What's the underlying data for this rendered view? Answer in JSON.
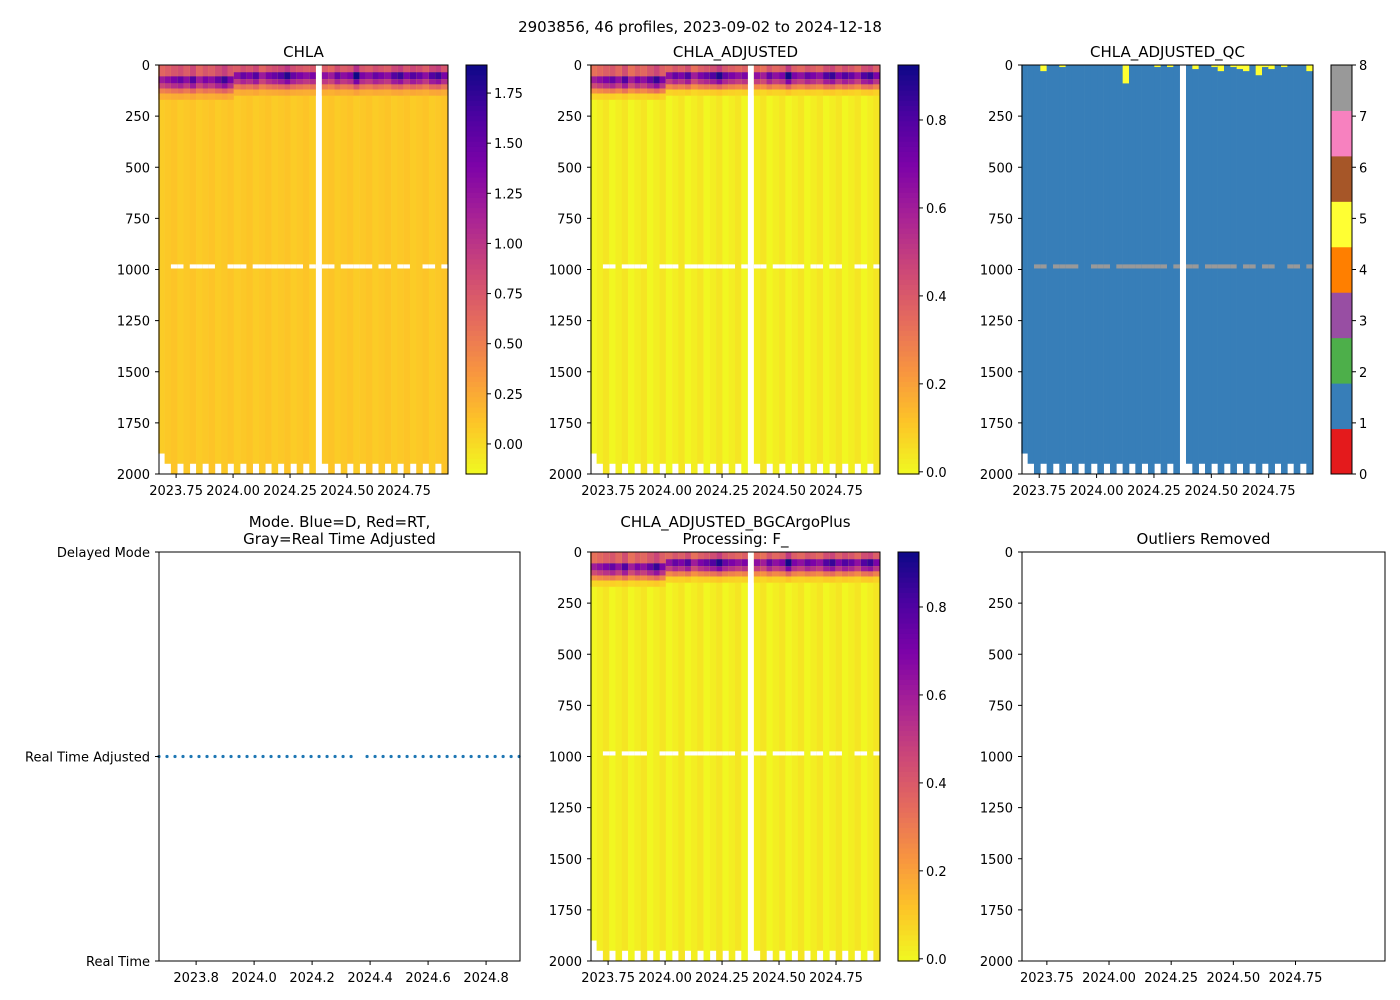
{
  "suptitle": "2903856, 46 profiles, 2023-09-02 to 2024-12-18",
  "chart_data": [
    {
      "type": "heatmap",
      "title": "CHLA",
      "variable": "CHLA",
      "xlim": [
        2023.675,
        2024.943
      ],
      "ylim": [
        2000,
        0
      ],
      "xticks": [
        "2023.75",
        "2024.00",
        "2024.25",
        "2024.50",
        "2024.75"
      ],
      "xtick_values": [
        2023.75,
        2024.0,
        2024.25,
        2024.5,
        2024.75
      ],
      "yticks": [
        0,
        250,
        500,
        750,
        1000,
        1250,
        1500,
        1750,
        2000
      ],
      "colorbar": {
        "cmap": "plasma_r",
        "range": [
          -0.15,
          1.89
        ],
        "ticks": [
          0.0,
          0.25,
          0.5,
          0.75,
          1.0,
          1.25,
          1.5,
          1.75
        ],
        "tick_labels": [
          "0.00",
          "0.25",
          "0.50",
          "0.75",
          "1.00",
          "1.25",
          "1.50",
          "1.75"
        ]
      },
      "deep_value": 0.07,
      "surface_max": [
        1.2,
        1.3,
        1.4,
        1.5,
        1.3,
        1.6,
        1.2,
        1.4,
        1.3,
        1.5,
        1.7,
        1.4,
        1.3,
        1.5,
        1.4,
        1.6,
        1.2,
        1.4,
        1.5,
        1.6,
        1.8,
        1.5,
        1.4,
        1.3,
        1.4,
        1.3,
        1.2,
        1.5,
        1.3,
        1.4,
        1.9,
        1.4,
        1.3,
        1.5,
        1.4,
        1.3,
        1.6,
        1.7,
        1.4,
        1.6,
        1.5,
        1.3,
        1.6,
        1.7,
        1.4,
        1.6
      ]
    },
    {
      "type": "heatmap",
      "title": "CHLA_ADJUSTED",
      "variable": "CHLA_ADJUSTED",
      "xlim": [
        2023.675,
        2024.943
      ],
      "ylim": [
        2000,
        0
      ],
      "xticks": [
        "2023.75",
        "2024.00",
        "2024.25",
        "2024.50",
        "2024.75"
      ],
      "xtick_values": [
        2023.75,
        2024.0,
        2024.25,
        2024.5,
        2024.75
      ],
      "yticks": [
        0,
        250,
        500,
        750,
        1000,
        1250,
        1500,
        1750,
        2000
      ],
      "colorbar": {
        "cmap": "plasma_r",
        "range": [
          -0.005,
          0.925
        ],
        "ticks": [
          0.0,
          0.2,
          0.4,
          0.6,
          0.8
        ],
        "tick_labels": [
          "0.0",
          "0.2",
          "0.4",
          "0.6",
          "0.8"
        ]
      },
      "deep_value": 0.0,
      "surface_max": [
        0.6,
        0.65,
        0.7,
        0.75,
        0.65,
        0.8,
        0.6,
        0.7,
        0.65,
        0.75,
        0.85,
        0.7,
        0.65,
        0.75,
        0.7,
        0.8,
        0.6,
        0.7,
        0.75,
        0.8,
        0.9,
        0.75,
        0.7,
        0.65,
        0.7,
        0.65,
        0.6,
        0.75,
        0.65,
        0.7,
        0.92,
        0.7,
        0.65,
        0.75,
        0.7,
        0.65,
        0.8,
        0.85,
        0.7,
        0.8,
        0.75,
        0.65,
        0.8,
        0.85,
        0.7,
        0.8
      ]
    },
    {
      "type": "heatmap",
      "title": "CHLA_ADJUSTED_QC",
      "variable": "CHLA_ADJUSTED_QC",
      "xlim": [
        2023.675,
        2024.943
      ],
      "ylim": [
        2000,
        0
      ],
      "xticks": [
        "2023.75",
        "2024.00",
        "2024.25",
        "2024.50",
        "2024.75"
      ],
      "xtick_values": [
        2023.75,
        2024.0,
        2024.25,
        2024.5,
        2024.75
      ],
      "yticks": [
        0,
        250,
        500,
        750,
        1000,
        1250,
        1500,
        1750,
        2000
      ],
      "colorbar": {
        "cmap": "qc",
        "range": [
          0,
          8
        ],
        "ticks": [
          0,
          1,
          2,
          3,
          4,
          5,
          6,
          7,
          8
        ],
        "tick_labels": [
          "0",
          "1",
          "2",
          "3",
          "4",
          "5",
          "6",
          "7",
          "8"
        ],
        "colors": [
          "#e41a1c",
          "#377eb8",
          "#4daf4a",
          "#984ea3",
          "#ff7f00",
          "#ffff33",
          "#a65628",
          "#f781bf",
          "#999999"
        ]
      },
      "surface_flag5_depth": [
        0,
        0,
        0,
        30,
        0,
        0,
        10,
        0,
        0,
        0,
        0,
        0,
        0,
        0,
        0,
        0,
        90,
        0,
        0,
        0,
        0,
        10,
        0,
        10,
        0,
        0,
        20,
        0,
        0,
        10,
        30,
        0,
        10,
        20,
        30,
        0,
        50,
        10,
        20,
        0,
        10,
        0,
        0,
        0,
        30,
        10
      ]
    },
    {
      "type": "scatter",
      "title": "Mode. Blue=D, Red=RT,\nGray=Real Time Adjusted",
      "xlim": [
        2023.672,
        2024.917
      ],
      "xticks": [
        "2023.8",
        "2024.0",
        "2024.2",
        "2024.4",
        "2024.6",
        "2024.8"
      ],
      "xtick_values": [
        2023.8,
        2024.0,
        2024.2,
        2024.4,
        2024.6,
        2024.8
      ],
      "yticks": [
        "Real Time",
        "Real Time Adjusted",
        "Delayed Mode"
      ],
      "ylim": [
        0,
        2
      ],
      "series": [
        {
          "name": "Real Time Adjusted",
          "y": 1,
          "color": "#1f77b4"
        }
      ]
    },
    {
      "type": "heatmap",
      "title": "CHLA_ADJUSTED_BGCArgoPlus\nProcessing: F_",
      "variable": "CHLA_ADJUSTED",
      "xlim": [
        2023.675,
        2024.943
      ],
      "ylim": [
        2000,
        0
      ],
      "xticks": [
        "2023.75",
        "2024.00",
        "2024.25",
        "2024.50",
        "2024.75"
      ],
      "xtick_values": [
        2023.75,
        2024.0,
        2024.25,
        2024.5,
        2024.75
      ],
      "yticks": [
        0,
        250,
        500,
        750,
        1000,
        1250,
        1500,
        1750,
        2000
      ],
      "colorbar": {
        "cmap": "plasma_r",
        "range": [
          -0.005,
          0.925
        ],
        "ticks": [
          0.0,
          0.2,
          0.4,
          0.6,
          0.8
        ],
        "tick_labels": [
          "0.0",
          "0.2",
          "0.4",
          "0.6",
          "0.8"
        ]
      },
      "deep_value": 0.0,
      "surface_max": [
        0.6,
        0.65,
        0.7,
        0.75,
        0.65,
        0.8,
        0.6,
        0.7,
        0.65,
        0.75,
        0.85,
        0.7,
        0.65,
        0.75,
        0.7,
        0.8,
        0.6,
        0.7,
        0.75,
        0.8,
        0.9,
        0.75,
        0.7,
        0.65,
        0.7,
        0.65,
        0.6,
        0.75,
        0.65,
        0.7,
        0.92,
        0.7,
        0.65,
        0.75,
        0.7,
        0.65,
        0.8,
        0.85,
        0.7,
        0.8,
        0.75,
        0.65,
        0.8,
        0.85,
        0.7,
        0.8
      ]
    },
    {
      "type": "empty",
      "title": "Outliers Removed",
      "xlim": [
        2023.65,
        2025.11
      ],
      "ylim": [
        2000,
        0
      ],
      "xticks": [
        "2023.75",
        "2024.00",
        "2024.25",
        "2024.50",
        "2024.75"
      ],
      "xtick_values": [
        2023.75,
        2024.0,
        2024.25,
        2024.5,
        2024.75
      ],
      "yticks": [
        0,
        250,
        500,
        750,
        1000,
        1250,
        1500,
        1750,
        2000
      ]
    }
  ],
  "profiles": {
    "count": 46,
    "start": 2023.672,
    "spacing_years": 0.0276,
    "gap_after_index": 24,
    "missing_near_1000m": [
      2,
      3,
      5,
      6,
      7,
      8,
      11,
      12,
      13,
      15,
      16,
      17,
      18,
      19,
      20,
      21,
      22,
      24,
      25,
      26,
      28,
      29,
      30,
      31,
      32,
      34,
      35,
      37,
      38,
      41,
      42,
      44
    ]
  }
}
